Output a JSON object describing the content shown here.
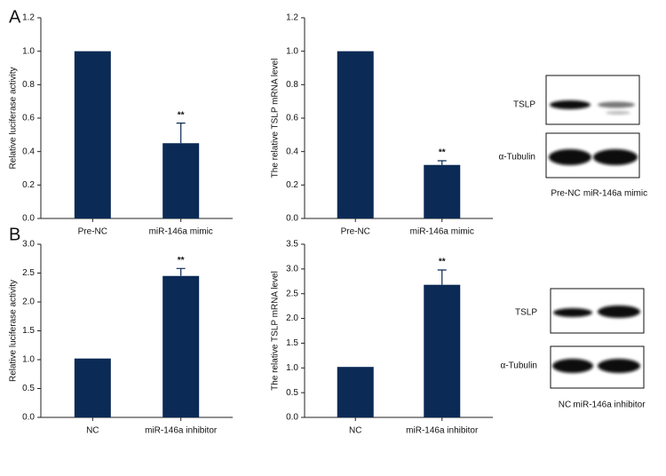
{
  "panel_labels": [
    "A",
    "B"
  ],
  "chart_data": [
    {
      "type": "bar",
      "y_label": "Relative luciferase activity",
      "categories": [
        "Pre-NC",
        "miR-146a mimic"
      ],
      "values": [
        1.0,
        0.45
      ],
      "errors": [
        null,
        0.12
      ],
      "significance": [
        null,
        "**"
      ],
      "color": "#0b2a55",
      "ylim": [
        0,
        1.2
      ],
      "yticks": [
        {
          "value": 0,
          "label": "0.0"
        },
        {
          "value": 0.2,
          "label": "0.2"
        },
        {
          "value": 0.4,
          "label": "0.4"
        },
        {
          "value": 0.6,
          "label": "0.6"
        },
        {
          "value": 0.8,
          "label": "0.8"
        },
        {
          "value": 1.0,
          "label": "1.0"
        },
        {
          "value": 1.2,
          "label": "1.2"
        }
      ]
    },
    {
      "type": "bar",
      "y_label": "The relative TSLP mRNA level",
      "categories": [
        "Pre-NC",
        "miR-146a mimic"
      ],
      "values": [
        1.0,
        0.32
      ],
      "errors": [
        null,
        0.025
      ],
      "significance": [
        null,
        "**"
      ],
      "color": "#0b2a55",
      "ylim": [
        0,
        1.2
      ],
      "yticks": [
        {
          "value": 0,
          "label": "0.0"
        },
        {
          "value": 0.2,
          "label": "0.2"
        },
        {
          "value": 0.4,
          "label": "0.4"
        },
        {
          "value": 0.6,
          "label": "0.6"
        },
        {
          "value": 0.8,
          "label": "0.8"
        },
        {
          "value": 1.0,
          "label": "1.0"
        },
        {
          "value": 1.2,
          "label": "1.2"
        }
      ]
    },
    {
      "type": "bar",
      "y_label": "Relative luciferase activity",
      "categories": [
        "NC",
        "miR-146a inhibitor"
      ],
      "values": [
        1.02,
        2.45
      ],
      "errors": [
        null,
        0.13
      ],
      "significance": [
        null,
        "**"
      ],
      "color": "#0b2a55",
      "ylim": [
        0,
        3.0
      ],
      "yticks": [
        {
          "value": 0,
          "label": "0.0"
        },
        {
          "value": 0.5,
          "label": "0.5"
        },
        {
          "value": 1.0,
          "label": "1.0"
        },
        {
          "value": 1.5,
          "label": "1.5"
        },
        {
          "value": 2.0,
          "label": "2.0"
        },
        {
          "value": 2.5,
          "label": "2.5"
        },
        {
          "value": 3.0,
          "label": "3.0"
        }
      ]
    },
    {
      "type": "bar",
      "y_label": "The relative TSLP mRNA level",
      "categories": [
        "NC",
        "miR-146a inhibitor"
      ],
      "values": [
        1.02,
        2.68
      ],
      "errors": [
        null,
        0.3
      ],
      "significance": [
        null,
        "**"
      ],
      "color": "#0b2a55",
      "ylim": [
        0,
        3.5
      ],
      "yticks": [
        {
          "value": 0,
          "label": "0.0"
        },
        {
          "value": 0.5,
          "label": "0.5"
        },
        {
          "value": 1.0,
          "label": "1.0"
        },
        {
          "value": 1.5,
          "label": "1.5"
        },
        {
          "value": 2.0,
          "label": "2.0"
        },
        {
          "value": 2.5,
          "label": "2.5"
        },
        {
          "value": 3.0,
          "label": "3.0"
        },
        {
          "value": 3.5,
          "label": "3.5"
        }
      ]
    }
  ],
  "blots": [
    {
      "rows": [
        "TSLP",
        "α-Tubulin"
      ],
      "lanes": [
        "Pre-NC",
        "miR-146a mimic"
      ]
    },
    {
      "rows": [
        "TSLP",
        "α-Tubulin"
      ],
      "lanes": [
        "NC",
        "miR-146a inhibitor"
      ]
    }
  ]
}
